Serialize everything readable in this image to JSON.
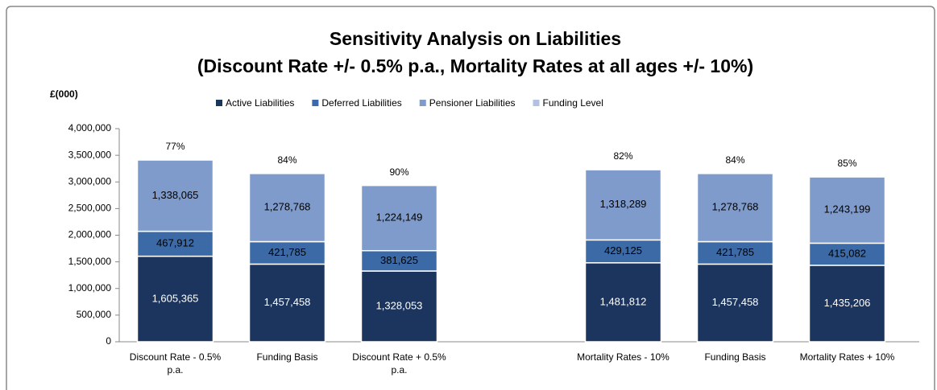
{
  "chart_data": {
    "type": "stacked-bar",
    "title": [
      "Sensitivity Analysis on Liabilities",
      "(Discount Rate +/- 0.5% p.a., Mortality Rates at all ages +/- 10%)"
    ],
    "ylabel": "£(000)",
    "categories": [
      "Discount Rate - 0.5% p.a.",
      "Funding Basis",
      "Discount Rate + 0.5% p.a.",
      null,
      "Mortality Rates - 10%",
      "Funding Basis",
      "Mortality Rates + 10%"
    ],
    "series": [
      {
        "name": "Active Liabilities",
        "color": "#1c355e",
        "values": [
          1605365,
          1457458,
          1328053,
          null,
          1481812,
          1457458,
          1435206
        ],
        "value_labels": [
          "1,605,365",
          "1,457,458",
          "1,328,053",
          null,
          "1,481,812",
          "1,457,458",
          "1,435,206"
        ]
      },
      {
        "name": "Deferred Liabilities",
        "color": "#3c6aa6",
        "values": [
          467912,
          421785,
          381625,
          null,
          429125,
          421785,
          415082
        ],
        "value_labels": [
          "467,912",
          "421,785",
          "381,625",
          null,
          "429,125",
          "421,785",
          "415,082"
        ]
      },
      {
        "name": "Pensioner Liabilities",
        "color": "#7f9bcb",
        "values": [
          1338065,
          1278768,
          1224149,
          null,
          1318289,
          1278768,
          1243199
        ],
        "value_labels": [
          "1,338,065",
          "1,278,768",
          "1,224,149",
          null,
          "1,318,289",
          "1,278,768",
          "1,243,199"
        ]
      },
      {
        "name": "Funding Level",
        "color": "#b3c2e0",
        "values": [
          77,
          84,
          90,
          null,
          82,
          84,
          85
        ],
        "value_labels": [
          "77%",
          "84%",
          "90%",
          null,
          "82%",
          "84%",
          "85%"
        ]
      }
    ],
    "ylim": [
      0,
      4000000
    ],
    "yticks": [
      0,
      {
        "value": 500000,
        "label": "500,000"
      },
      {
        "value": 1000000,
        "label": "1,000,000"
      },
      {
        "value": 1500000,
        "label": "1,500,000"
      },
      {
        "value": 2000000,
        "label": "2,000,000"
      },
      {
        "value": 2500000,
        "label": "2,500,000"
      },
      {
        "value": 3000000,
        "label": "3,000,000"
      },
      {
        "value": 3500000,
        "label": "3,500,000"
      },
      {
        "value": 4000000,
        "label": "4,000,000"
      }
    ],
    "grid": false
  }
}
